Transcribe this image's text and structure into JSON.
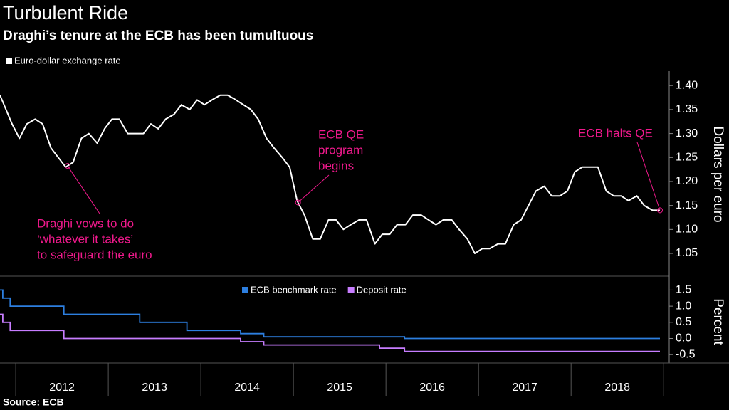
{
  "source": "Source: ECB",
  "chart_data": [
    {
      "type": "line",
      "title": "Turbulent Ride",
      "subtitle": "Draghi’s tenure at the ECB has been tumultuous",
      "ylabel": "Dollars per euro",
      "xlim": [
        2011.83,
        2019.06
      ],
      "x": [
        2011.83,
        2011.96,
        2012.04,
        2012.12,
        2012.21,
        2012.29,
        2012.38,
        2012.46,
        2012.54,
        2012.62,
        2012.71,
        2012.79,
        2012.88,
        2012.96,
        2013.04,
        2013.12,
        2013.21,
        2013.29,
        2013.38,
        2013.46,
        2013.54,
        2013.62,
        2013.71,
        2013.79,
        2013.88,
        2013.96,
        2014.04,
        2014.12,
        2014.21,
        2014.29,
        2014.38,
        2014.46,
        2014.54,
        2014.62,
        2014.71,
        2014.79,
        2014.88,
        2014.96,
        2015.04,
        2015.12,
        2015.21,
        2015.29,
        2015.38,
        2015.46,
        2015.54,
        2015.62,
        2015.71,
        2015.79,
        2015.88,
        2015.96,
        2016.04,
        2016.12,
        2016.21,
        2016.29,
        2016.38,
        2016.46,
        2016.54,
        2016.62,
        2016.71,
        2016.79,
        2016.88,
        2016.96,
        2017.04,
        2017.12,
        2017.21,
        2017.29,
        2017.38,
        2017.46,
        2017.54,
        2017.62,
        2017.71,
        2017.79,
        2017.88,
        2017.96,
        2018.04,
        2018.12,
        2018.21,
        2018.29,
        2018.38,
        2018.46,
        2018.54,
        2018.62,
        2018.71,
        2018.79,
        2018.88,
        2018.96
      ],
      "series": [
        {
          "name": "Euro-dollar exchange rate",
          "color": "#ffffff",
          "values": [
            1.38,
            1.32,
            1.29,
            1.32,
            1.33,
            1.32,
            1.27,
            1.25,
            1.23,
            1.24,
            1.29,
            1.3,
            1.28,
            1.31,
            1.33,
            1.33,
            1.3,
            1.3,
            1.3,
            1.32,
            1.31,
            1.33,
            1.34,
            1.36,
            1.35,
            1.37,
            1.36,
            1.37,
            1.38,
            1.38,
            1.37,
            1.36,
            1.35,
            1.33,
            1.29,
            1.27,
            1.25,
            1.23,
            1.16,
            1.13,
            1.08,
            1.08,
            1.12,
            1.12,
            1.1,
            1.11,
            1.12,
            1.12,
            1.07,
            1.09,
            1.09,
            1.11,
            1.11,
            1.13,
            1.13,
            1.12,
            1.11,
            1.12,
            1.12,
            1.1,
            1.08,
            1.05,
            1.06,
            1.06,
            1.07,
            1.07,
            1.11,
            1.12,
            1.15,
            1.18,
            1.19,
            1.17,
            1.17,
            1.18,
            1.22,
            1.23,
            1.23,
            1.23,
            1.18,
            1.17,
            1.17,
            1.16,
            1.17,
            1.15,
            1.14,
            1.14
          ]
        }
      ],
      "ylim": [
        1.007,
        1.43
      ],
      "yticks": [
        1.05,
        {
          "value": 1.1,
          "label": "1.10"
        },
        1.15,
        {
          "value": 1.2,
          "label": "1.20"
        },
        1.25,
        {
          "value": 1.3,
          "label": "1.30"
        },
        1.35,
        {
          "value": 1.4,
          "label": "1.40"
        }
      ],
      "annotations": [
        {
          "x": 2012.56,
          "lines": [
            "Draghi vows to do",
            "‘whatever it takes’",
            "to safeguard the euro"
          ]
        },
        {
          "x": 2015.05,
          "lines": [
            "ECB QE",
            "program",
            "begins"
          ]
        },
        {
          "x": 2018.96,
          "lines": [
            "ECB halts QE"
          ]
        }
      ],
      "annotation_color": "#f0198c"
    },
    {
      "type": "step",
      "ylabel": "Percent",
      "xlim": [
        2011.83,
        2019.06
      ],
      "series": [
        {
          "name": "ECB benchmark rate",
          "color": "#2d7fe0",
          "x": [
            2011.83,
            2011.86,
            2011.94,
            2012.52,
            2013.34,
            2013.85,
            2014.43,
            2014.68,
            2016.2,
            2018.96
          ],
          "values": [
            1.5,
            1.25,
            1.0,
            0.75,
            0.5,
            0.25,
            0.15,
            0.05,
            0.0,
            0.0
          ]
        },
        {
          "name": "Deposit rate",
          "color": "#c77dff",
          "x": [
            2011.83,
            2011.86,
            2011.94,
            2012.52,
            2014.43,
            2014.68,
            2015.93,
            2016.2,
            2018.96
          ],
          "values": [
            0.75,
            0.5,
            0.25,
            0.0,
            -0.1,
            -0.2,
            -0.3,
            -0.4,
            -0.4
          ]
        }
      ],
      "ylim": [
        -0.76,
        1.84
      ],
      "yticks": [
        -0.5,
        {
          "value": 0,
          "label": "0.0"
        },
        0.5,
        {
          "value": 1,
          "label": "1.0"
        },
        1.5
      ],
      "xticks": [
        2012,
        2013,
        2014,
        2015,
        2016,
        2017,
        2018
      ]
    }
  ]
}
